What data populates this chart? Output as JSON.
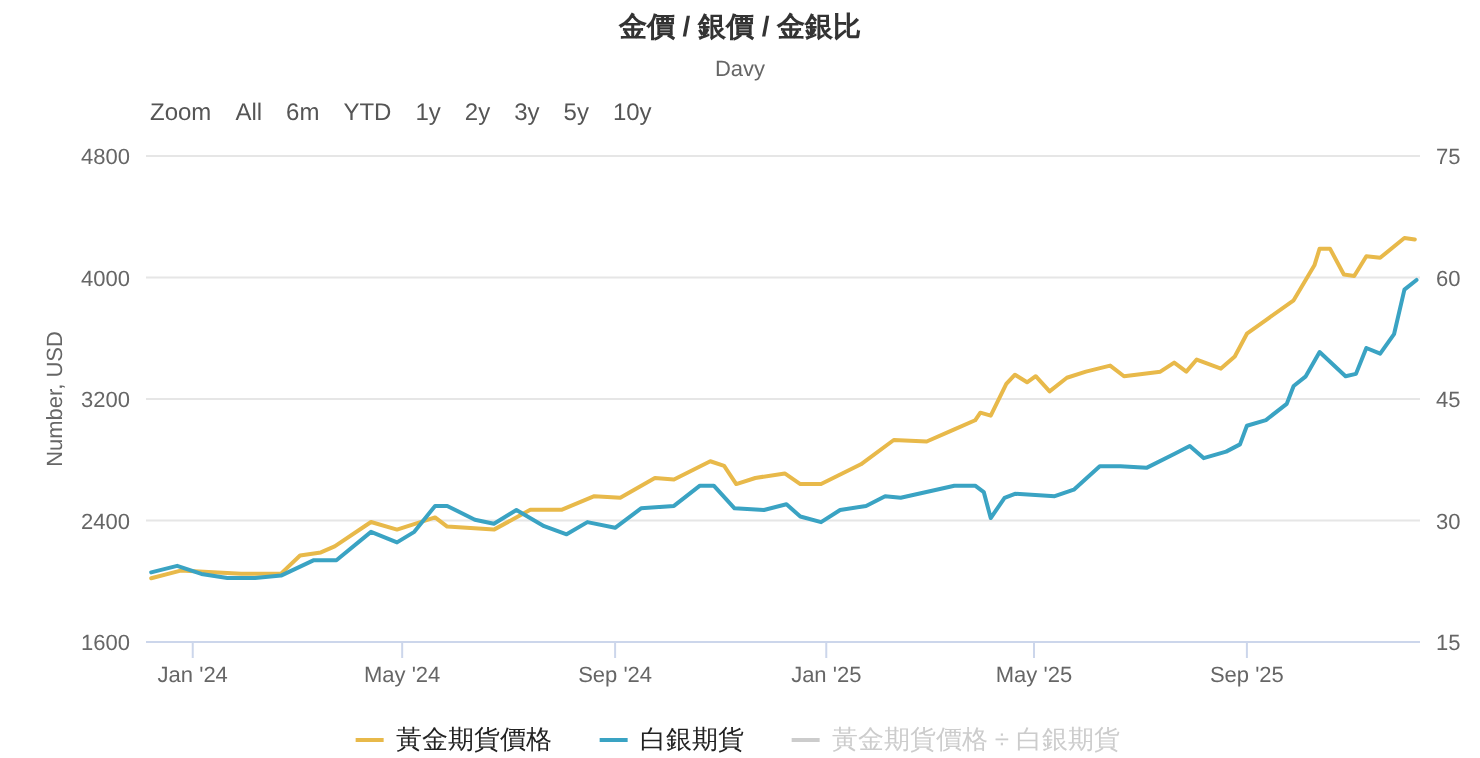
{
  "chart_data": {
    "type": "line",
    "title": "金價 / 銀價 / 金銀比",
    "subtitle": "Davy",
    "ylabel": "Number, USD",
    "annotations": [
      "Zoom",
      "All",
      "6m",
      "YTD",
      "1y",
      "2y",
      "3y",
      "5y",
      "10y"
    ],
    "xlim": [
      "2023-12-05",
      "2025-12-10"
    ],
    "xticks": [
      {
        "value": "2024-01-01",
        "label": "Jan '24"
      },
      {
        "value": "2024-05-01",
        "label": "May '24"
      },
      {
        "value": "2024-09-01",
        "label": "Sep '24"
      },
      {
        "value": "2025-01-01",
        "label": "Jan '25"
      },
      {
        "value": "2025-05-01",
        "label": "May '25"
      },
      {
        "value": "2025-09-01",
        "label": "Sep '25"
      }
    ],
    "ylim": [
      1600,
      4800
    ],
    "yticks": [
      1600,
      2400,
      3200,
      4000,
      4800
    ],
    "y2lim": [
      15,
      75
    ],
    "y2ticks": [
      15,
      30,
      45,
      60,
      75
    ],
    "grid": "y",
    "legend": "bottom",
    "marker": "none",
    "line_style": "solid",
    "series": [
      {
        "name": "黃金期貨價格",
        "color": "#e8b94a",
        "x": [
          "2023-12-08",
          "2023-12-25",
          "2024-01-29",
          "2024-02-21",
          "2024-03-03",
          "2024-03-15",
          "2024-03-23",
          "2024-04-13",
          "2024-04-28",
          "2024-05-20",
          "2024-05-27",
          "2024-06-23",
          "2024-07-14",
          "2024-08-01",
          "2024-08-20",
          "2024-09-04",
          "2024-09-24",
          "2024-10-05",
          "2024-10-26",
          "2024-11-03",
          "2024-11-10",
          "2024-11-21",
          "2024-12-08",
          "2024-12-17",
          "2024-12-29",
          "2025-01-21",
          "2025-02-09",
          "2025-02-28",
          "2025-03-16",
          "2025-03-28",
          "2025-03-31",
          "2025-04-06",
          "2025-04-15",
          "2025-04-20",
          "2025-04-27",
          "2025-05-02",
          "2025-05-10",
          "2025-05-20",
          "2025-05-31",
          "2025-06-14",
          "2025-06-22",
          "2025-07-13",
          "2025-07-21",
          "2025-07-28",
          "2025-08-03",
          "2025-08-17",
          "2025-08-25",
          "2025-09-01",
          "2025-09-12",
          "2025-09-28",
          "2025-10-10",
          "2025-10-13",
          "2025-10-19",
          "2025-10-27",
          "2025-11-02",
          "2025-11-09",
          "2025-11-17",
          "2025-12-01",
          "2025-12-07"
        ],
        "values": [
          2020,
          2070,
          2050,
          2050,
          2170,
          2190,
          2230,
          2390,
          2340,
          2420,
          2360,
          2340,
          2470,
          2470,
          2560,
          2550,
          2680,
          2670,
          2790,
          2760,
          2640,
          2680,
          2710,
          2640,
          2640,
          2770,
          2930,
          2920,
          3000,
          3060,
          3110,
          3090,
          3300,
          3360,
          3310,
          3350,
          3250,
          3340,
          3380,
          3420,
          3350,
          3380,
          3440,
          3380,
          3460,
          3400,
          3480,
          3630,
          3720,
          3850,
          4080,
          4190,
          4190,
          4020,
          4010,
          4140,
          4130,
          4260,
          4250
        ]
      },
      {
        "name": "白銀期貨",
        "color": "#3aa3c3",
        "axis": "y2",
        "x": [
          "2023-12-08",
          "2023-12-23",
          "2024-01-06",
          "2024-01-21",
          "2024-02-06",
          "2024-02-21",
          "2024-03-11",
          "2024-03-24",
          "2024-04-13",
          "2024-04-28",
          "2024-05-08",
          "2024-05-20",
          "2024-05-27",
          "2024-06-12",
          "2024-06-23",
          "2024-07-06",
          "2024-07-22",
          "2024-08-04",
          "2024-08-16",
          "2024-09-01",
          "2024-09-16",
          "2024-10-05",
          "2024-10-20",
          "2024-10-28",
          "2024-11-09",
          "2024-11-26",
          "2024-12-09",
          "2024-12-17",
          "2024-12-29",
          "2025-01-09",
          "2025-01-24",
          "2025-02-04",
          "2025-02-13",
          "2025-03-16",
          "2025-03-28",
          "2025-04-02",
          "2025-04-06",
          "2025-04-14",
          "2025-04-20",
          "2025-05-13",
          "2025-05-24",
          "2025-06-08",
          "2025-06-20",
          "2025-07-05",
          "2025-07-21",
          "2025-07-30",
          "2025-08-07",
          "2025-08-20",
          "2025-08-28",
          "2025-09-01",
          "2025-09-12",
          "2025-09-24",
          "2025-09-28",
          "2025-10-05",
          "2025-10-13",
          "2025-10-28",
          "2025-11-03",
          "2025-11-09",
          "2025-11-17",
          "2025-11-25",
          "2025-12-01",
          "2025-12-08"
        ],
        "values": [
          23.6,
          24.4,
          23.4,
          22.9,
          22.9,
          23.2,
          25.1,
          25.1,
          28.6,
          27.3,
          28.6,
          31.8,
          31.8,
          30.1,
          29.6,
          31.3,
          29.3,
          28.3,
          29.8,
          29.1,
          31.5,
          31.8,
          34.3,
          34.3,
          31.5,
          31.3,
          32.0,
          30.5,
          29.8,
          31.3,
          31.8,
          33.0,
          32.8,
          34.3,
          34.3,
          33.5,
          30.3,
          32.8,
          33.3,
          33.0,
          33.8,
          36.7,
          36.7,
          36.5,
          38.2,
          39.2,
          37.7,
          38.5,
          39.4,
          41.7,
          42.4,
          44.4,
          46.6,
          47.8,
          50.8,
          47.8,
          48.1,
          51.3,
          50.6,
          53.0,
          58.5,
          59.7
        ]
      },
      {
        "name": "黃金期貨價格 ÷ 白銀期貨",
        "color": "#cccccc",
        "axis": "y2"
      }
    ]
  }
}
